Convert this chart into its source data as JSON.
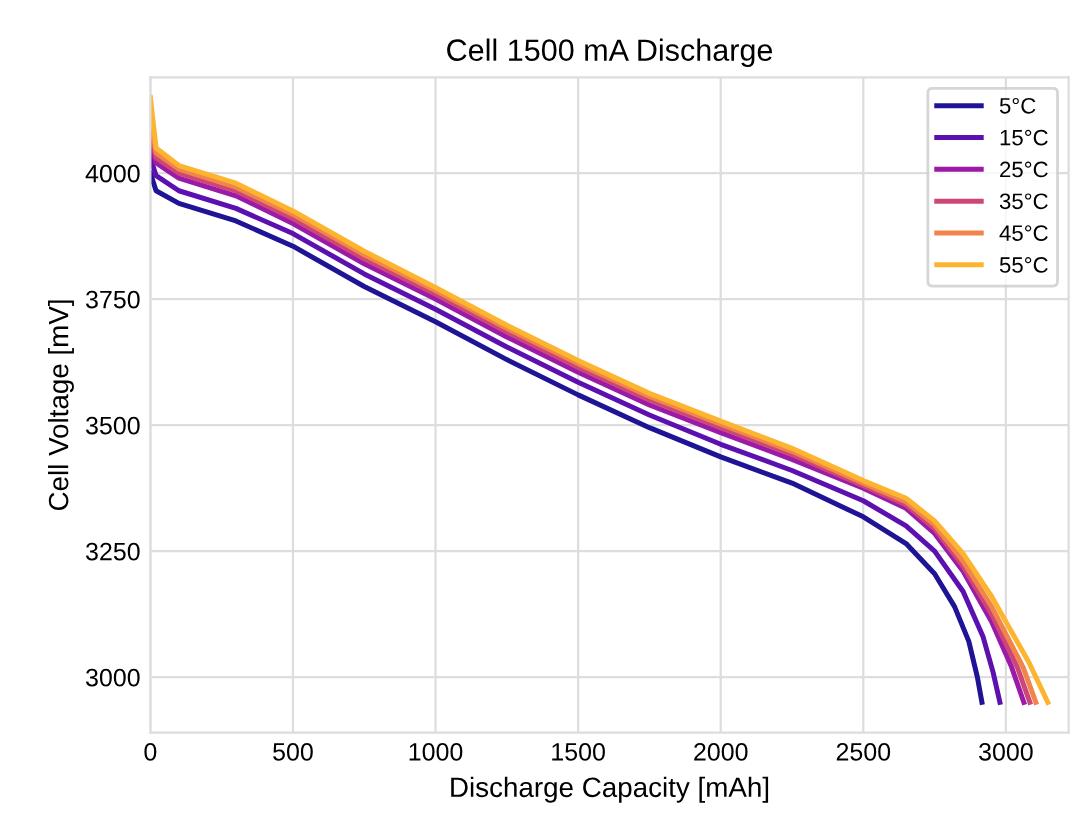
{
  "chart_data": {
    "type": "line",
    "title": "Cell 1500 mA Discharge",
    "xlabel": "Discharge Capacity [mAh]",
    "ylabel": "Cell Voltage [mV]",
    "xlim": [
      0,
      3220
    ],
    "ylim": [
      2890,
      4190
    ],
    "xticks": [
      0,
      500,
      1000,
      1500,
      2000,
      2500,
      3000
    ],
    "yticks": [
      3000,
      3250,
      3500,
      3750,
      4000
    ],
    "grid": true,
    "legend": "top right",
    "marker": "none",
    "line_style": "solid",
    "series": [
      {
        "name": "5°C",
        "color": "#1f1496",
        "x": [
          0,
          20,
          100,
          300,
          500,
          750,
          1000,
          1250,
          1500,
          1750,
          2000,
          2250,
          2500,
          2650,
          2750,
          2820,
          2870,
          2900,
          2916
        ],
        "values": [
          4000,
          3965,
          3940,
          3905,
          3855,
          3775,
          3705,
          3630,
          3560,
          3495,
          3437,
          3385,
          3318,
          3265,
          3205,
          3140,
          3071,
          3000,
          2950
        ]
      },
      {
        "name": "15°C",
        "color": "#5c10b0",
        "x": [
          0,
          20,
          100,
          300,
          500,
          750,
          1000,
          1250,
          1500,
          1750,
          2000,
          2250,
          2500,
          2650,
          2750,
          2850,
          2920,
          2955,
          2979
        ],
        "values": [
          4030,
          3995,
          3965,
          3930,
          3880,
          3800,
          3730,
          3655,
          3585,
          3520,
          3462,
          3410,
          3350,
          3300,
          3250,
          3170,
          3080,
          3010,
          2950
        ]
      },
      {
        "name": "25°C",
        "color": "#9c1aa8",
        "x": [
          0,
          20,
          100,
          300,
          500,
          750,
          1000,
          1250,
          1500,
          1750,
          2000,
          2250,
          2500,
          2650,
          2750,
          2850,
          2950,
          3020,
          3063
        ],
        "values": [
          4060,
          4020,
          3990,
          3955,
          3900,
          3820,
          3750,
          3675,
          3605,
          3540,
          3485,
          3432,
          3375,
          3335,
          3285,
          3210,
          3110,
          3020,
          2950
        ]
      },
      {
        "name": "35°C",
        "color": "#cc4778",
        "x": [
          0,
          20,
          100,
          300,
          500,
          750,
          1000,
          1250,
          1500,
          1750,
          2000,
          2250,
          2500,
          2650,
          2750,
          2850,
          2950,
          3040,
          3084
        ],
        "values": [
          4080,
          4030,
          4000,
          3965,
          3910,
          3830,
          3760,
          3685,
          3615,
          3550,
          3495,
          3442,
          3380,
          3342,
          3295,
          3220,
          3125,
          3020,
          2950
        ]
      },
      {
        "name": "45°C",
        "color": "#f2844b",
        "x": [
          0,
          20,
          100,
          300,
          500,
          750,
          1000,
          1250,
          1500,
          1750,
          2000,
          2250,
          2500,
          2650,
          2750,
          2850,
          2950,
          3060,
          3105
        ],
        "values": [
          4110,
          4040,
          4008,
          3972,
          3918,
          3838,
          3767,
          3692,
          3622,
          3557,
          3502,
          3448,
          3385,
          3348,
          3302,
          3230,
          3140,
          3020,
          2950
        ]
      },
      {
        "name": "55°C",
        "color": "#fdb42f",
        "x": [
          0,
          20,
          100,
          300,
          500,
          750,
          1000,
          1250,
          1500,
          1750,
          2000,
          2250,
          2500,
          2650,
          2750,
          2850,
          2950,
          3080,
          3147
        ],
        "values": [
          4150,
          4050,
          4015,
          3980,
          3925,
          3845,
          3773,
          3698,
          3628,
          3563,
          3508,
          3454,
          3390,
          3355,
          3310,
          3245,
          3160,
          3030,
          2950
        ]
      }
    ]
  }
}
